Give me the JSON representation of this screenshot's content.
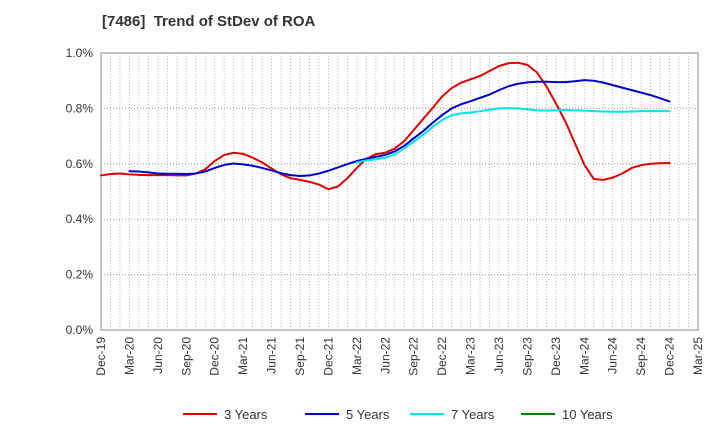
{
  "chart_data": {
    "type": "line",
    "title": "[7486]  Trend of StDev of ROA",
    "xlabel": "",
    "ylabel": "",
    "x_ticks": [
      "Dec-19",
      "Mar-20",
      "Jun-20",
      "Sep-20",
      "Dec-20",
      "Mar-21",
      "Jun-21",
      "Sep-21",
      "Dec-21",
      "Mar-22",
      "Jun-22",
      "Sep-22",
      "Dec-22",
      "Mar-23",
      "Jun-23",
      "Sep-23",
      "Dec-23",
      "Mar-24",
      "Jun-24",
      "Sep-24",
      "Dec-24",
      "Mar-25"
    ],
    "y_ticks": [
      "0.0%",
      "0.2%",
      "0.4%",
      "0.6%",
      "0.8%",
      "1.0%"
    ],
    "ylim": [
      0,
      1.0
    ],
    "y_unit": "%",
    "grid": true,
    "legend_position": "bottom",
    "series": [
      {
        "name": "3 Years",
        "color": "#dd0000",
        "x": [
          "2019-12",
          "2020-01",
          "2020-02",
          "2020-03",
          "2020-04",
          "2020-05",
          "2020-06",
          "2020-07",
          "2020-08",
          "2020-09",
          "2020-10",
          "2020-11",
          "2020-12",
          "2021-01",
          "2021-02",
          "2021-03",
          "2021-04",
          "2021-05",
          "2021-06",
          "2021-07",
          "2021-08",
          "2021-09",
          "2021-10",
          "2021-11",
          "2021-12",
          "2022-01",
          "2022-02",
          "2022-03",
          "2022-04",
          "2022-05",
          "2022-06",
          "2022-07",
          "2022-08",
          "2022-09",
          "2022-10",
          "2022-11",
          "2022-12",
          "2023-01",
          "2023-02",
          "2023-03",
          "2023-04",
          "2023-05",
          "2023-06",
          "2023-07",
          "2023-08",
          "2023-09",
          "2023-10",
          "2023-11",
          "2023-12",
          "2024-01",
          "2024-02",
          "2024-03",
          "2024-04",
          "2024-05",
          "2024-06",
          "2024-07",
          "2024-08",
          "2024-09",
          "2024-10",
          "2024-11",
          "2024-12"
        ],
        "values": [
          0.558,
          0.563,
          0.565,
          0.562,
          0.56,
          0.559,
          0.559,
          0.559,
          0.558,
          0.558,
          0.565,
          0.58,
          0.61,
          0.632,
          0.64,
          0.636,
          0.622,
          0.605,
          0.583,
          0.562,
          0.548,
          0.542,
          0.535,
          0.525,
          0.508,
          0.518,
          0.548,
          0.585,
          0.618,
          0.635,
          0.64,
          0.655,
          0.682,
          0.722,
          0.762,
          0.802,
          0.843,
          0.873,
          0.893,
          0.905,
          0.917,
          0.935,
          0.953,
          0.963,
          0.965,
          0.957,
          0.93,
          0.88,
          0.818,
          0.753,
          0.675,
          0.597,
          0.545,
          0.542,
          0.55,
          0.565,
          0.585,
          0.595,
          0.6,
          0.602,
          0.603
        ]
      },
      {
        "name": "5 Years",
        "color": "#0000cc",
        "x": [
          "2020-03",
          "2020-04",
          "2020-05",
          "2020-06",
          "2020-07",
          "2020-08",
          "2020-09",
          "2020-10",
          "2020-11",
          "2020-12",
          "2021-01",
          "2021-02",
          "2021-03",
          "2021-04",
          "2021-05",
          "2021-06",
          "2021-07",
          "2021-08",
          "2021-09",
          "2021-10",
          "2021-11",
          "2021-12",
          "2022-01",
          "2022-02",
          "2022-03",
          "2022-04",
          "2022-05",
          "2022-06",
          "2022-07",
          "2022-08",
          "2022-09",
          "2022-10",
          "2022-11",
          "2022-12",
          "2023-01",
          "2023-02",
          "2023-03",
          "2023-04",
          "2023-05",
          "2023-06",
          "2023-07",
          "2023-08",
          "2023-09",
          "2023-10",
          "2023-11",
          "2023-12",
          "2024-01",
          "2024-02",
          "2024-03",
          "2024-04",
          "2024-05",
          "2024-06",
          "2024-07",
          "2024-08",
          "2024-09",
          "2024-10",
          "2024-11",
          "2024-12"
        ],
        "values": [
          0.573,
          0.572,
          0.569,
          0.565,
          0.564,
          0.564,
          0.563,
          0.565,
          0.572,
          0.585,
          0.596,
          0.601,
          0.598,
          0.593,
          0.585,
          0.576,
          0.566,
          0.559,
          0.556,
          0.558,
          0.565,
          0.575,
          0.587,
          0.599,
          0.61,
          0.618,
          0.625,
          0.632,
          0.645,
          0.665,
          0.692,
          0.718,
          0.748,
          0.776,
          0.8,
          0.815,
          0.826,
          0.838,
          0.85,
          0.866,
          0.88,
          0.889,
          0.894,
          0.896,
          0.896,
          0.895,
          0.895,
          0.898,
          0.902,
          0.9,
          0.893,
          0.884,
          0.875,
          0.866,
          0.857,
          0.848,
          0.837,
          0.825
        ]
      },
      {
        "name": "7 Years",
        "color": "#00e5e5",
        "x": [
          "2022-03",
          "2022-04",
          "2022-05",
          "2022-06",
          "2022-07",
          "2022-08",
          "2022-09",
          "2022-10",
          "2022-11",
          "2022-12",
          "2023-01",
          "2023-02",
          "2023-03",
          "2023-04",
          "2023-05",
          "2023-06",
          "2023-07",
          "2023-08",
          "2023-09",
          "2023-10",
          "2023-11",
          "2023-12",
          "2024-01",
          "2024-02",
          "2024-03",
          "2024-04",
          "2024-05",
          "2024-06",
          "2024-07",
          "2024-08",
          "2024-09",
          "2024-10",
          "2024-11",
          "2024-12"
        ],
        "values": [
          0.605,
          0.612,
          0.616,
          0.622,
          0.634,
          0.655,
          0.68,
          0.705,
          0.733,
          0.758,
          0.775,
          0.782,
          0.785,
          0.79,
          0.795,
          0.8,
          0.801,
          0.8,
          0.797,
          0.793,
          0.792,
          0.793,
          0.794,
          0.793,
          0.792,
          0.79,
          0.789,
          0.788,
          0.788,
          0.789,
          0.79,
          0.79,
          0.79,
          0.79
        ]
      },
      {
        "name": "10 Years",
        "color": "#008000",
        "x": [],
        "values": []
      }
    ]
  }
}
